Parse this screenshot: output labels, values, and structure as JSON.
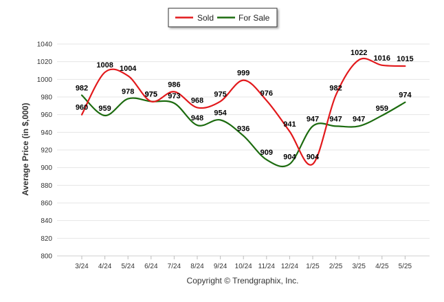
{
  "chart_data": {
    "type": "line",
    "categories": [
      "3/24",
      "4/24",
      "5/24",
      "6/24",
      "7/24",
      "8/24",
      "9/24",
      "10/24",
      "11/24",
      "12/24",
      "1/25",
      "2/25",
      "3/25",
      "4/25",
      "5/25"
    ],
    "series": [
      {
        "name": "Sold",
        "color": "#e2191c",
        "values": [
          960,
          1008,
          1004,
          975,
          986,
          968,
          975,
          999,
          976,
          941,
          904,
          982,
          1022,
          1016,
          1015
        ]
      },
      {
        "name": "For Sale",
        "color": "#1c6b0f",
        "values": [
          982,
          959,
          978,
          975,
          973,
          948,
          954,
          936,
          909,
          904,
          947,
          947,
          947,
          959,
          974
        ]
      }
    ],
    "ylabel": "Average Price (in $,000)",
    "ylim": [
      800,
      1040
    ],
    "yticks": [
      800,
      820,
      840,
      860,
      880,
      900,
      920,
      940,
      960,
      980,
      1000,
      1020,
      1040
    ],
    "grid": true,
    "legend": "top-center",
    "credit": "Copyright © Trendgraphix, Inc."
  }
}
